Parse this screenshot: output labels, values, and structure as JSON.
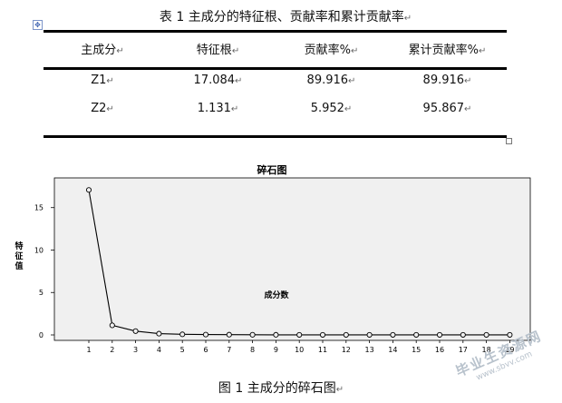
{
  "table": {
    "caption": "表 1 主成分的特征根、贡献率和累计贡献率",
    "headers": [
      "主成分",
      "特征根",
      "贡献率%",
      "累计贡献率%"
    ],
    "rows": [
      [
        "Z1",
        "17.084",
        "89.916",
        "89.916"
      ],
      [
        "Z2",
        "1.131",
        "5.952",
        "95.867"
      ]
    ],
    "paragraph_mark": "↵"
  },
  "chart_data": {
    "type": "line",
    "title": "碎石图",
    "xlabel": "成分数",
    "ylabel": "特征值",
    "x": [
      1,
      2,
      3,
      4,
      5,
      6,
      7,
      8,
      9,
      10,
      11,
      12,
      13,
      14,
      15,
      16,
      17,
      18,
      19
    ],
    "values": [
      17.084,
      1.131,
      0.45,
      0.15,
      0.07,
      0.04,
      0.03,
      0.02,
      0.015,
      0.01,
      0.01,
      0.01,
      0.01,
      0.01,
      0.01,
      0.01,
      0.01,
      0.01,
      0.01
    ],
    "yticks": [
      0,
      5,
      10,
      15
    ],
    "xticks": [
      "1",
      "2",
      "3",
      "4",
      "5",
      "6",
      "7",
      "8",
      "9",
      "10",
      "11",
      "12",
      "13",
      "14",
      "15",
      "16",
      "17",
      "18",
      "19"
    ],
    "ylim": [
      0,
      18.5
    ],
    "grid": false,
    "colors": {
      "plot_bg": "#f0f0f0",
      "line": "#000000",
      "marker_fill": "#f0f0f0"
    }
  },
  "figure": {
    "caption": "图 1 主成分的碎石图"
  },
  "watermark": {
    "main": "毕业生资源网",
    "sub": "www.sbvv.com"
  }
}
